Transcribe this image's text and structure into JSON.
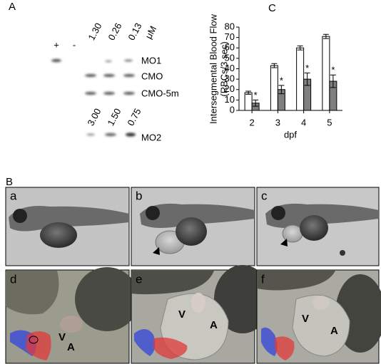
{
  "panel_labels": [
    "A",
    "B",
    "C"
  ],
  "gel": {
    "lane_labels": [
      "+",
      "-"
    ],
    "concentrations_1": [
      "1.30",
      "0.26",
      "0.13"
    ],
    "unit": "μM",
    "rows": [
      "MO1",
      "CMO",
      "CMO-5m"
    ],
    "concentrations_2": [
      "3.00",
      "1.50",
      "0.75"
    ],
    "row_2": "MO2"
  },
  "micrographs": {
    "labels": [
      "a",
      "b",
      "c",
      "d",
      "e",
      "f"
    ],
    "ventricle": "V",
    "atrium": "A"
  },
  "chart_data": {
    "type": "bar",
    "categories": [
      "2",
      "3",
      "4",
      "5"
    ],
    "series": [
      {
        "color": "#ffffff",
        "values": [
          17,
          43,
          60,
          71
        ],
        "errors": [
          1.5,
          2,
          2,
          2
        ]
      },
      {
        "color": "#7f7f7f",
        "values": [
          7,
          20,
          30,
          28
        ],
        "errors": [
          3,
          4,
          6,
          6
        ]
      }
    ],
    "significance_marks": [
      "*",
      "*",
      "*",
      "*"
    ],
    "xlabel": "dpf",
    "ylabel": [
      "Intersegmental Blood Flow",
      "(RBCs/3 sec)"
    ],
    "ylim": [
      0,
      80
    ],
    "yticks": [
      0,
      10,
      20,
      30,
      40,
      50,
      60,
      70,
      80
    ]
  }
}
